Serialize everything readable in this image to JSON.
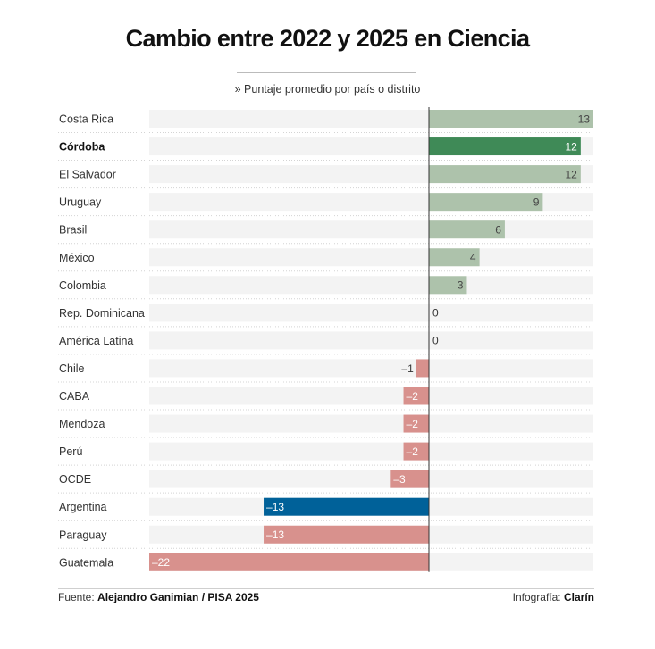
{
  "header": {
    "title": "Cambio entre 2022 y 2025 en Ciencia",
    "subtitle": "» Puntaje promedio por país o distrito"
  },
  "footer": {
    "source_prefix": "Fuente: ",
    "source_value": "Alejandro Ganimian / PISA 2025",
    "credit_prefix": "Infografía: ",
    "credit_value": "Clarín"
  },
  "colors": {
    "positive": "#adc2ab",
    "positive_highlight": "#3f8a57",
    "negative": "#d8918d",
    "negative_highlight": "#006199",
    "track": "#f3f3f3",
    "axis": "#333333"
  },
  "chart_data": {
    "type": "bar",
    "orientation": "horizontal",
    "title": "Cambio entre 2022 y 2025 en Ciencia",
    "subtitle": "» Puntaje promedio por país o distrito",
    "xlim": [
      -22,
      13
    ],
    "grid": false,
    "categories": [
      "Costa Rica",
      "Córdoba",
      "El Salvador",
      "Uruguay",
      "Brasil",
      "México",
      "Colombia",
      "Rep. Dominicana",
      "América Latina",
      "Chile",
      "CABA",
      "Mendoza",
      "Perú",
      "OCDE",
      "Argentina",
      "Paraguay",
      "Guatemala"
    ],
    "values": [
      13,
      12,
      12,
      9,
      6,
      4,
      3,
      0,
      0,
      -1,
      -2,
      -2,
      -2,
      -3,
      -13,
      -13,
      -22
    ],
    "value_labels": [
      "13",
      "12",
      "12",
      "9",
      "6",
      "4",
      "3",
      "0",
      "0",
      "–1",
      "–2",
      "–2",
      "–2",
      "–3",
      "–13",
      "–13",
      "–22"
    ],
    "highlighted": [
      "Córdoba",
      "Argentina"
    ]
  }
}
